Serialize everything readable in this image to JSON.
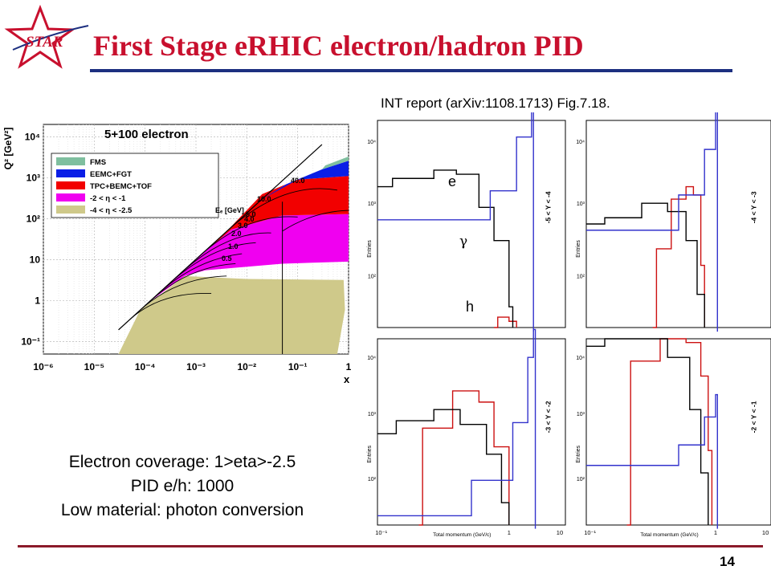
{
  "slide": {
    "title": "First Stage eRHIC electron/hadron PID",
    "logo_text": "STAR",
    "reference": "INT report (arXiv:1108.1713) Fig.7.18.",
    "bullets": [
      "Electron coverage: 1>eta>-2.5",
      "PID e/h: 1000",
      "Low material: photon conversion"
    ],
    "page_number": "14",
    "colors": {
      "title": "#c8102e",
      "rule": "#1c2f80",
      "footer_rule": "#8b1a2a"
    }
  },
  "chart_data": [
    {
      "type": "area",
      "title": "5+100 electron",
      "xlabel": "x",
      "ylabel": "Q² [GeV²]",
      "xscale": "log",
      "yscale": "log",
      "xlim": [
        1e-06,
        1
      ],
      "ylim": [
        0.05,
        20000
      ],
      "x_ticks": [
        "10⁻⁶",
        "10⁻⁵",
        "10⁻⁴",
        "10⁻³",
        "10⁻²",
        "10⁻¹",
        "1"
      ],
      "y_ticks": [
        "10⁻¹",
        "1",
        "10",
        "10²",
        "10³",
        "10⁴"
      ],
      "grid": true,
      "legend_position": "top-left",
      "legend": [
        {
          "name": "FMS",
          "color": "#7fbf9f"
        },
        {
          "name": "EEMC+FGT",
          "color": "#0a1ee6"
        },
        {
          "name": "TPC+BEMC+TOF",
          "color": "#f20000"
        },
        {
          "name": "-2 < η < -1",
          "color": "#f000f0"
        },
        {
          "name": "-4 < η < -2.5",
          "color": "#cfc98a"
        }
      ],
      "energy_label": "Eₑ [GeV]",
      "energy_lines": [
        "0.5",
        "1.0",
        "2.0",
        "3.0",
        "4.0",
        "5.0",
        "10.0",
        "40.0"
      ]
    },
    {
      "type": "line",
      "xlabel": "Total momentum (GeV/c)",
      "ylabel": "Entries",
      "xscale": "log",
      "yscale": "log",
      "x_ticks": [
        "10⁻¹",
        "1",
        "10"
      ],
      "y_ticks": [
        "10²",
        "10³",
        "10⁴"
      ],
      "series_labels": [
        "e",
        "γ",
        "h"
      ],
      "series_colors": {
        "e": "#3333cc",
        "γ": "#cc1111",
        "h": "#000000"
      },
      "panels": [
        {
          "label": "-5 < Y < -4"
        },
        {
          "label": "-4 < Y < -3"
        },
        {
          "label": "-3 < Y < -2"
        },
        {
          "label": "-2 < Y < -1"
        }
      ]
    }
  ]
}
